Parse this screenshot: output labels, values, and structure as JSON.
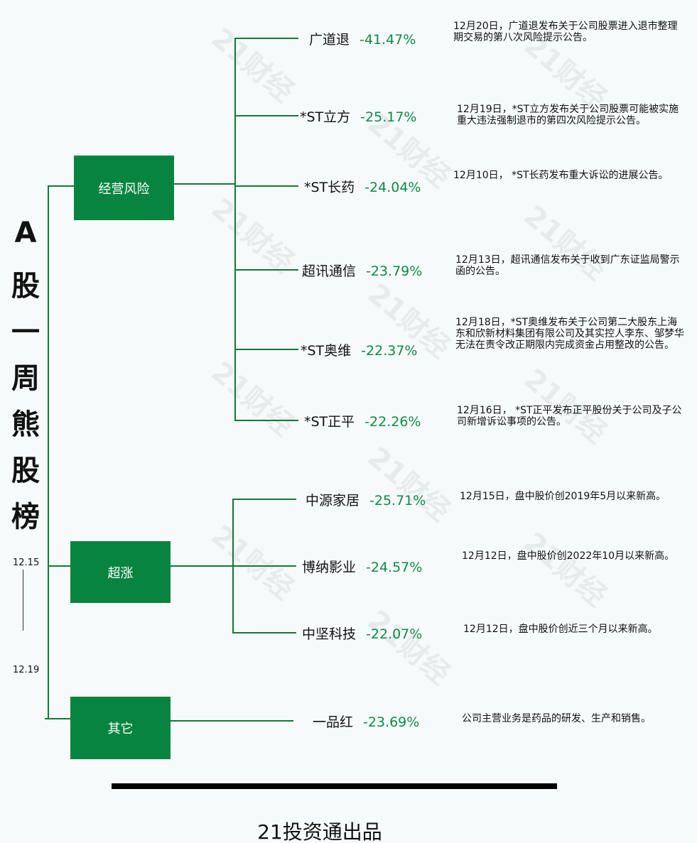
{
  "title_chars": [
    "A",
    "股",
    "一",
    "周",
    "熊",
    "股",
    "榜"
  ],
  "date_range": {
    "start": "12.15",
    "end": "12.19"
  },
  "watermark": "21财经",
  "categories": [
    {
      "label": "经营风险",
      "stocks": [
        {
          "name": "广道退",
          "pct": "-41.47%",
          "note": "12月20日，广道退发布关于公司股票进入退市整理期交易的第八次风险提示公告。"
        },
        {
          "name": "*ST立方",
          "pct": "-25.17%",
          "note": "12月19日，*ST立方发布关于公司股票可能被实施重大违法强制退市的第四次风险提示公告。"
        },
        {
          "name": "*ST长药",
          "pct": "-24.04%",
          "note": "12月10日， *ST长药发布重大诉讼的进展公告。"
        },
        {
          "name": "超讯通信",
          "pct": "-23.79%",
          "note": "12月13日，超讯通信发布关于收到广东证监局警示函的公告。"
        },
        {
          "name": "*ST奥维",
          "pct": "-22.37%",
          "note": "12月18日，*ST奥维发布关于公司第二大股东上海东和欣新材料集团有限公司及其实控人李东、邹梦华无法在责令改正期限内完成资金占用整改的公告。"
        },
        {
          "name": "*ST正平",
          "pct": "-22.26%",
          "note": "12月16日， *ST正平发布正平股份关于公司及子公司新增诉讼事项的公告。"
        }
      ]
    },
    {
      "label": "超涨",
      "stocks": [
        {
          "name": "中源家居",
          "pct": "-25.71%",
          "note": "12月15日，盘中股价创2019年5月以来新高。"
        },
        {
          "name": "博纳影业",
          "pct": "-24.57%",
          "note": "12月12日，盘中股价创2022年10月以来新高。"
        },
        {
          "name": "中坚科技",
          "pct": "-22.07%",
          "note": "12月12日，盘中股价创近三个月以来新高。"
        }
      ]
    },
    {
      "label": "其它",
      "stocks": [
        {
          "name": "一品红",
          "pct": "-23.69%",
          "note": "公司主营业务是药品的研发、生产和销售。"
        }
      ]
    }
  ],
  "footer": "21投资通出品",
  "colors": {
    "accent": "#07843f",
    "line": "#0f7a3c",
    "pct": "#0f8a45"
  }
}
